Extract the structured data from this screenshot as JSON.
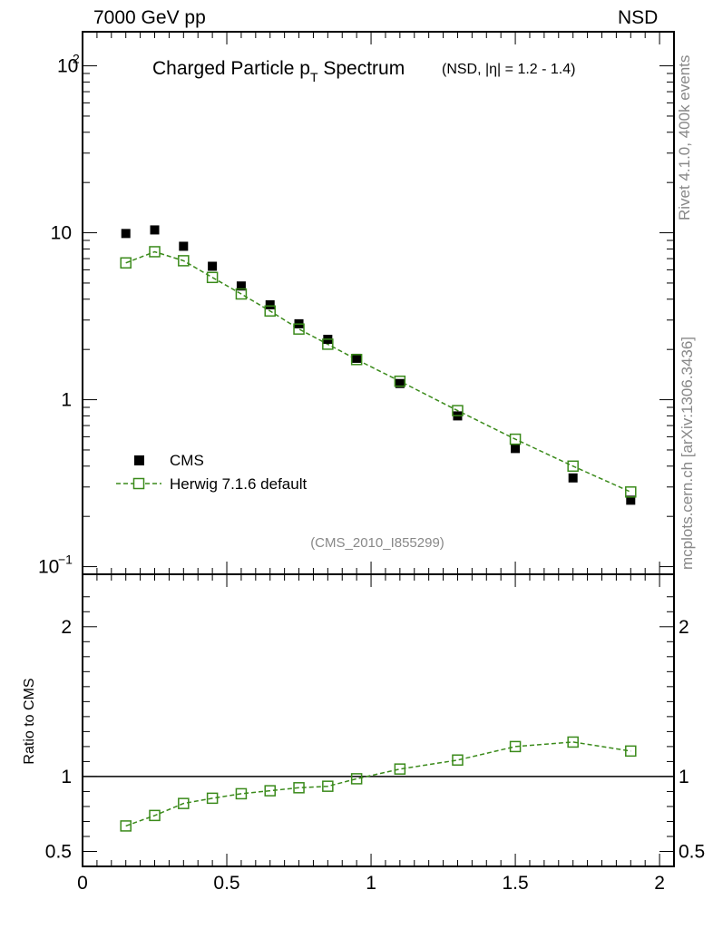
{
  "header": {
    "left_label": "7000 GeV pp",
    "right_label": "NSD"
  },
  "side_labels": {
    "rivet": "Rivet 4.1.0,  400k events",
    "mcplots": "mcplots.cern.ch [arXiv:1306.3436]"
  },
  "chart_data": [
    {
      "type": "scatter",
      "title_main": "Charged Particle p",
      "title_sub": "T",
      "title_tail": " Spectrum",
      "title_small": "(NSD, |η| = 1.2 - 1.4)",
      "analysis_tag": "(CMS_2010_I855299)",
      "yscale": "log",
      "xlim": [
        0,
        2.05
      ],
      "ylim": [
        0.09,
        160
      ],
      "ytick_labels": {
        "1e2": "10",
        "1e2_exp": "2",
        "10": "10",
        "1": "1",
        "1e-1": "10",
        "1e-1_exp": "−1"
      },
      "series": [
        {
          "name": "CMS",
          "marker": "filled-square",
          "color": "#000000",
          "x": [
            0.15,
            0.25,
            0.35,
            0.45,
            0.55,
            0.65,
            0.75,
            0.85,
            0.95,
            1.1,
            1.3,
            1.5,
            1.7,
            1.9
          ],
          "y": [
            9.9,
            10.4,
            8.3,
            6.3,
            4.8,
            3.7,
            2.85,
            2.3,
            1.77,
            1.25,
            0.8,
            0.51,
            0.34,
            0.25
          ]
        },
        {
          "name": "Herwig 7.1.6 default",
          "marker": "open-square",
          "line": "dashed",
          "color": "#3a8a1a",
          "x": [
            0.15,
            0.25,
            0.35,
            0.45,
            0.55,
            0.65,
            0.75,
            0.85,
            0.95,
            1.1,
            1.3,
            1.5,
            1.7,
            1.9
          ],
          "y": [
            6.6,
            7.7,
            6.8,
            5.4,
            4.3,
            3.4,
            2.65,
            2.15,
            1.74,
            1.29,
            0.86,
            0.58,
            0.4,
            0.28
          ]
        }
      ],
      "legend": [
        "CMS",
        "Herwig 7.1.6 default"
      ]
    },
    {
      "type": "line",
      "ylabel": "Ratio to CMS",
      "xlim": [
        0,
        2.05
      ],
      "ylim": [
        0.4,
        2.35
      ],
      "xticks": [
        0,
        0.5,
        1,
        1.5,
        2
      ],
      "xtick_labels": [
        "0",
        "0.5",
        "1",
        "1.5",
        "2"
      ],
      "yticks": [
        0.5,
        1,
        2
      ],
      "ytick_labels": [
        "0.5",
        "1",
        "2"
      ],
      "reference_line": 1,
      "series": [
        {
          "name": "Herwig 7.1.6 default / CMS",
          "marker": "open-square",
          "line": "dashed",
          "color": "#3a8a1a",
          "x": [
            0.15,
            0.25,
            0.35,
            0.45,
            0.55,
            0.65,
            0.75,
            0.85,
            0.95,
            1.1,
            1.3,
            1.5,
            1.7,
            1.9
          ],
          "y": [
            0.67,
            0.74,
            0.82,
            0.855,
            0.885,
            0.905,
            0.925,
            0.935,
            0.985,
            1.05,
            1.11,
            1.2,
            1.23,
            1.17
          ]
        }
      ]
    }
  ]
}
